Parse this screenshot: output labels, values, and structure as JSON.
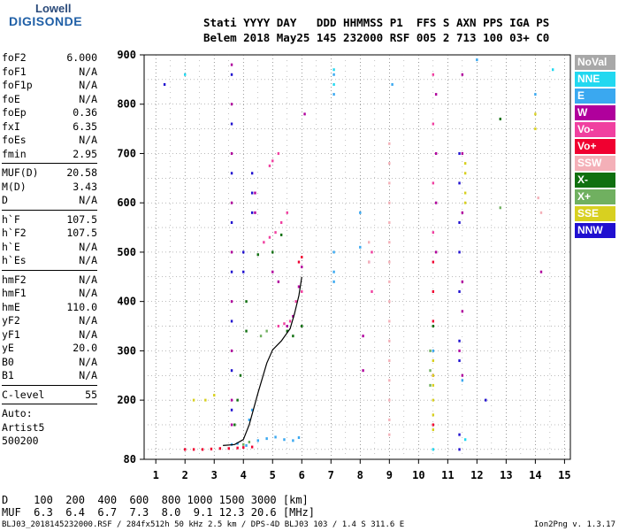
{
  "logo": {
    "top": "Lowell",
    "bottom": "DIGISONDE"
  },
  "header": {
    "line1": "Stati YYYY DAY   DDD HHMMSS P1  FFS S AXN PPS IGA PS",
    "line2": "Belem 2018 May25 145 232000 RSF 005 2 713 100 03+ C0"
  },
  "params": [
    {
      "name": "foF2",
      "value": "6.000"
    },
    {
      "name": "foF1",
      "value": "N/A"
    },
    {
      "name": "foF1p",
      "value": "N/A"
    },
    {
      "name": "foE",
      "value": "N/A"
    },
    {
      "name": "foEp",
      "value": "0.36"
    },
    {
      "name": "fxI",
      "value": "6.35"
    },
    {
      "name": "foEs",
      "value": "N/A"
    },
    {
      "name": "fmin",
      "value": "2.95"
    },
    {
      "sep": true
    },
    {
      "name": "MUF(D)",
      "value": "20.58"
    },
    {
      "name": "M(D)",
      "value": "3.43"
    },
    {
      "name": "D",
      "value": "N/A"
    },
    {
      "sep": true
    },
    {
      "name": "h`F",
      "value": "107.5"
    },
    {
      "name": "h`F2",
      "value": "107.5"
    },
    {
      "name": "h`E",
      "value": "N/A"
    },
    {
      "name": "h`Es",
      "value": "N/A"
    },
    {
      "sep": true
    },
    {
      "name": "hmF2",
      "value": "N/A"
    },
    {
      "name": "hmF1",
      "value": "N/A"
    },
    {
      "name": "hmE",
      "value": "110.0"
    },
    {
      "name": "yF2",
      "value": "N/A"
    },
    {
      "name": "yF1",
      "value": "N/A"
    },
    {
      "name": "yE",
      "value": "20.0"
    },
    {
      "name": "B0",
      "value": "N/A"
    },
    {
      "name": "B1",
      "value": "N/A"
    },
    {
      "sep": true
    },
    {
      "name": "C-level",
      "value": "55"
    },
    {
      "sep": true
    },
    {
      "name": "Auto:",
      "value": ""
    },
    {
      "name": "Artist5",
      "value": ""
    },
    {
      "name": "500200",
      "value": ""
    }
  ],
  "legend": [
    {
      "label": "NoVal",
      "color": "#a8a8a8"
    },
    {
      "label": "NNE",
      "color": "#22d8f0"
    },
    {
      "label": "E",
      "color": "#3aa8f0"
    },
    {
      "label": "W",
      "color": "#b0009c"
    },
    {
      "label": "Vo-",
      "color": "#f040a0"
    },
    {
      "label": "Vo+",
      "color": "#f00030"
    },
    {
      "label": "SSW",
      "color": "#f4b0b8"
    },
    {
      "label": "X-",
      "color": "#107010"
    },
    {
      "label": "X+",
      "color": "#70b060"
    },
    {
      "label": "SSE",
      "color": "#d8d020"
    },
    {
      "label": "NNW",
      "color": "#2010d0"
    }
  ],
  "bottom": {
    "d_row": "D    100  200  400  600  800 1000 1500 3000 [km]",
    "muf_row": "MUF  6.3  6.4  6.7  7.3  8.0  9.1 12.3 20.6 [MHz]"
  },
  "footer": {
    "left": "BLJ03_2018145232000.RSF / 284fx512h 50 kHz 2.5 km / DPS-4D BLJ03 103 / 1.4 S 311.6 E",
    "right": "Ion2Png v. 1.3.17"
  },
  "chart_data": {
    "type": "scatter",
    "title": "",
    "xlabel": "",
    "ylabel": "",
    "xlim": [
      0.6,
      15.2
    ],
    "ylim": [
      80,
      900
    ],
    "x_ticks": [
      1,
      2,
      3,
      4,
      5,
      6,
      7,
      8,
      9,
      10,
      11,
      12,
      13,
      14,
      15
    ],
    "y_ticks": [
      80,
      200,
      300,
      400,
      500,
      600,
      700,
      800,
      900
    ],
    "grid": true,
    "trace": [
      [
        3.3,
        108
      ],
      [
        3.7,
        110
      ],
      [
        4.0,
        120
      ],
      [
        4.2,
        150
      ],
      [
        4.5,
        215
      ],
      [
        4.8,
        275
      ],
      [
        5.0,
        302
      ],
      [
        5.3,
        320
      ],
      [
        5.6,
        345
      ],
      [
        5.75,
        375
      ],
      [
        5.9,
        412
      ],
      [
        6.0,
        450
      ]
    ],
    "series": [
      {
        "name": "E",
        "color": "#3aa8f0",
        "points": [
          [
            3.6,
            110
          ],
          [
            3.8,
            112
          ],
          [
            4.1,
            108
          ],
          [
            4.5,
            118
          ],
          [
            4.8,
            122
          ],
          [
            5.1,
            125
          ],
          [
            5.4,
            120
          ],
          [
            5.7,
            118
          ],
          [
            5.9,
            124
          ],
          [
            4.2,
            160
          ],
          [
            4.3,
            180
          ],
          [
            7.1,
            820
          ],
          [
            7.1,
            860
          ],
          [
            7.1,
            500
          ],
          [
            7.1,
            460
          ],
          [
            7.1,
            440
          ],
          [
            8.0,
            510
          ],
          [
            8.0,
            580
          ],
          [
            9.1,
            840
          ],
          [
            10.5,
            300
          ],
          [
            11.5,
            240
          ],
          [
            12.0,
            890
          ],
          [
            14.0,
            820
          ]
        ]
      },
      {
        "name": "W",
        "color": "#b0009c",
        "points": [
          [
            3.6,
            880
          ],
          [
            3.6,
            800
          ],
          [
            3.6,
            700
          ],
          [
            3.6,
            600
          ],
          [
            3.6,
            500
          ],
          [
            3.6,
            400
          ],
          [
            3.6,
            300
          ],
          [
            3.6,
            200
          ],
          [
            3.6,
            150
          ],
          [
            4.4,
            620
          ],
          [
            4.4,
            580
          ],
          [
            5.0,
            460
          ],
          [
            5.2,
            440
          ],
          [
            5.5,
            350
          ],
          [
            5.7,
            370
          ],
          [
            5.9,
            430
          ],
          [
            6.0,
            470
          ],
          [
            6.1,
            780
          ],
          [
            10.6,
            820
          ],
          [
            10.6,
            700
          ],
          [
            10.6,
            600
          ],
          [
            10.6,
            500
          ],
          [
            11.5,
            860
          ],
          [
            11.5,
            700
          ],
          [
            11.5,
            580
          ],
          [
            11.5,
            440
          ],
          [
            11.5,
            380
          ],
          [
            11.4,
            300
          ],
          [
            11.5,
            250
          ],
          [
            8.1,
            330
          ],
          [
            8.1,
            260
          ],
          [
            8.3,
            480
          ],
          [
            14.2,
            460
          ]
        ]
      },
      {
        "name": "Vo-",
        "color": "#f040a0",
        "points": [
          [
            4.7,
            520
          ],
          [
            4.9,
            530
          ],
          [
            5.1,
            540
          ],
          [
            5.3,
            560
          ],
          [
            5.5,
            580
          ],
          [
            5.0,
            685
          ],
          [
            5.2,
            700
          ],
          [
            4.9,
            675
          ],
          [
            5.2,
            350
          ],
          [
            5.4,
            355
          ],
          [
            5.6,
            360
          ],
          [
            5.8,
            400
          ],
          [
            6.0,
            420
          ],
          [
            10.5,
            860
          ],
          [
            10.5,
            760
          ],
          [
            10.5,
            640
          ],
          [
            10.5,
            540
          ],
          [
            8.4,
            500
          ],
          [
            8.4,
            420
          ]
        ]
      },
      {
        "name": "Vo+",
        "color": "#f00030",
        "points": [
          [
            2.0,
            100
          ],
          [
            2.3,
            100
          ],
          [
            2.6,
            100
          ],
          [
            2.9,
            101
          ],
          [
            3.2,
            102
          ],
          [
            3.5,
            102
          ],
          [
            3.8,
            103
          ],
          [
            4.0,
            104
          ],
          [
            4.3,
            105
          ],
          [
            5.9,
            480
          ],
          [
            6.0,
            490
          ],
          [
            10.5,
            480
          ],
          [
            10.5,
            420
          ],
          [
            10.5,
            360
          ],
          [
            10.5,
            250
          ],
          [
            10.5,
            150
          ]
        ]
      },
      {
        "name": "SSW",
        "color": "#f4b0b8",
        "points": [
          [
            9.0,
            720
          ],
          [
            9.0,
            680
          ],
          [
            9.0,
            640
          ],
          [
            9.0,
            600
          ],
          [
            9.0,
            560
          ],
          [
            9.0,
            520
          ],
          [
            9.0,
            480
          ],
          [
            9.0,
            440
          ],
          [
            9.0,
            400
          ],
          [
            9.0,
            360
          ],
          [
            9.0,
            320
          ],
          [
            9.0,
            280
          ],
          [
            9.0,
            240
          ],
          [
            9.0,
            200
          ],
          [
            9.0,
            160
          ],
          [
            9.0,
            130
          ],
          [
            8.3,
            520
          ],
          [
            8.3,
            480
          ],
          [
            14.1,
            610
          ],
          [
            14.2,
            580
          ]
        ]
      },
      {
        "name": "X-",
        "color": "#107010",
        "points": [
          [
            3.7,
            150
          ],
          [
            3.8,
            200
          ],
          [
            3.9,
            250
          ],
          [
            4.1,
            400
          ],
          [
            4.1,
            340
          ],
          [
            4.5,
            495
          ],
          [
            5.0,
            500
          ],
          [
            5.3,
            535
          ],
          [
            5.5,
            340
          ],
          [
            5.7,
            330
          ],
          [
            6.0,
            350
          ],
          [
            12.8,
            770
          ],
          [
            10.5,
            350
          ]
        ]
      },
      {
        "name": "X+",
        "color": "#70b060",
        "points": [
          [
            4.0,
            110
          ],
          [
            4.2,
            115
          ],
          [
            4.6,
            330
          ],
          [
            4.8,
            340
          ],
          [
            10.4,
            300
          ],
          [
            10.4,
            260
          ],
          [
            10.4,
            230
          ],
          [
            12.8,
            590
          ]
        ]
      },
      {
        "name": "SSE",
        "color": "#d8d020",
        "points": [
          [
            2.3,
            200
          ],
          [
            2.7,
            200
          ],
          [
            3.0,
            210
          ],
          [
            10.5,
            280
          ],
          [
            10.5,
            250
          ],
          [
            10.5,
            230
          ],
          [
            10.5,
            200
          ],
          [
            10.5,
            170
          ],
          [
            10.5,
            140
          ],
          [
            11.6,
            680
          ],
          [
            11.6,
            660
          ],
          [
            11.6,
            620
          ],
          [
            11.6,
            600
          ],
          [
            14.0,
            780
          ],
          [
            14.0,
            750
          ]
        ]
      },
      {
        "name": "NNW",
        "color": "#2010d0",
        "points": [
          [
            3.6,
            860
          ],
          [
            3.6,
            760
          ],
          [
            3.6,
            660
          ],
          [
            3.6,
            560
          ],
          [
            3.6,
            460
          ],
          [
            3.6,
            360
          ],
          [
            3.6,
            260
          ],
          [
            3.6,
            180
          ],
          [
            4.3,
            660
          ],
          [
            4.3,
            620
          ],
          [
            4.3,
            580
          ],
          [
            4.0,
            500
          ],
          [
            4.0,
            460
          ],
          [
            11.4,
            700
          ],
          [
            11.4,
            640
          ],
          [
            11.4,
            560
          ],
          [
            11.4,
            500
          ],
          [
            11.4,
            420
          ],
          [
            11.4,
            320
          ],
          [
            11.4,
            280
          ],
          [
            11.4,
            130
          ],
          [
            11.4,
            100
          ],
          [
            1.3,
            840
          ],
          [
            12.3,
            200
          ]
        ]
      },
      {
        "name": "NNE",
        "color": "#22d8f0",
        "points": [
          [
            7.1,
            870
          ],
          [
            7.1,
            840
          ],
          [
            14.6,
            870
          ],
          [
            2.0,
            860
          ],
          [
            10.5,
            100
          ],
          [
            11.6,
            120
          ]
        ]
      }
    ]
  }
}
